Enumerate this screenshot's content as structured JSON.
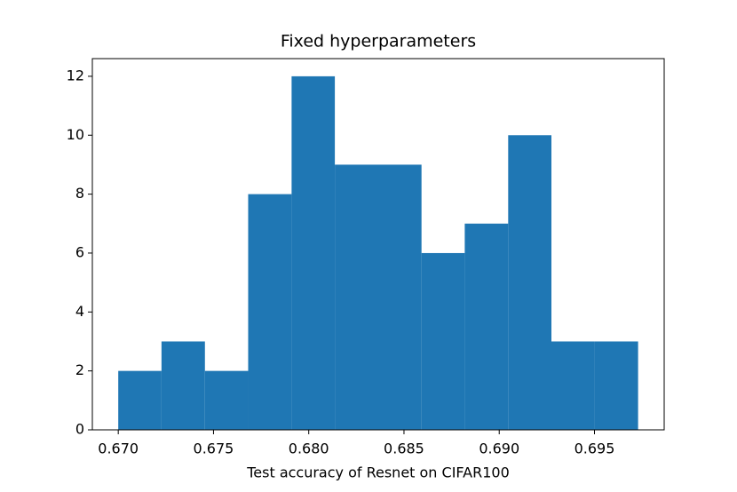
{
  "chart_data": {
    "type": "histogram",
    "title": "Fixed hyperparameters",
    "xlabel": "Test accuracy of Resnet on CIFAR100",
    "bins": [
      0.67,
      0.67227,
      0.67455,
      0.67682,
      0.6791,
      0.68137,
      0.68365,
      0.68592,
      0.68819,
      0.69047,
      0.69274,
      0.69502,
      0.69729
    ],
    "counts": [
      2,
      3,
      2,
      8,
      12,
      9,
      9,
      6,
      7,
      10,
      3,
      3
    ],
    "color": "#1f77b4",
    "xlim": [
      0.66864,
      0.69866
    ],
    "ylim": [
      0,
      12.6
    ],
    "xticks": [
      {
        "value": 0.67,
        "label": "0.670"
      },
      {
        "value": 0.675,
        "label": "0.675"
      },
      {
        "value": 0.68,
        "label": "0.680"
      },
      {
        "value": 0.685,
        "label": "0.685"
      },
      {
        "value": 0.69,
        "label": "0.690"
      },
      {
        "value": 0.695,
        "label": "0.695"
      }
    ],
    "yticks": [
      0,
      2,
      4,
      6,
      8,
      10,
      12
    ]
  }
}
